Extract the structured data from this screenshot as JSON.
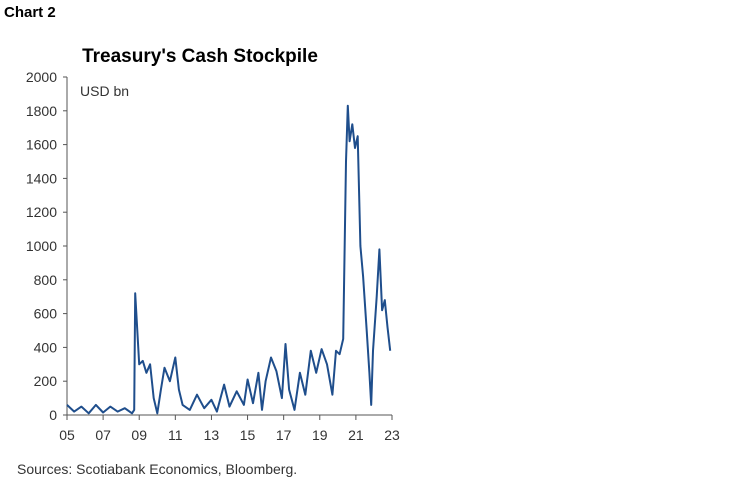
{
  "header": {
    "chart_label": "Chart 2"
  },
  "footer": {
    "source": "Sources: Scotiabank Economics, Bloomberg."
  },
  "chart_data": {
    "type": "line",
    "title": "Treasury's Cash Stockpile",
    "unit_label": "USD bn",
    "xlabel": "",
    "ylabel": "",
    "xlim": [
      2005,
      2023
    ],
    "ylim": [
      0,
      2000
    ],
    "x_ticks": [
      "05",
      "07",
      "09",
      "11",
      "13",
      "15",
      "17",
      "19",
      "21",
      "23"
    ],
    "y_ticks": [
      "0",
      "200",
      "400",
      "600",
      "800",
      "1000",
      "1200",
      "1400",
      "1600",
      "1800",
      "2000"
    ],
    "grid": false,
    "legend": "none",
    "line_color": "#1f4e8c",
    "series": [
      {
        "values": [
          [
            2005.0,
            60
          ],
          [
            2005.4,
            20
          ],
          [
            2005.8,
            50
          ],
          [
            2006.2,
            10
          ],
          [
            2006.6,
            60
          ],
          [
            2007.0,
            15
          ],
          [
            2007.4,
            50
          ],
          [
            2007.8,
            20
          ],
          [
            2008.2,
            40
          ],
          [
            2008.6,
            10
          ],
          [
            2008.72,
            30
          ],
          [
            2008.78,
            720
          ],
          [
            2008.88,
            520
          ],
          [
            2009.0,
            300
          ],
          [
            2009.2,
            320
          ],
          [
            2009.4,
            250
          ],
          [
            2009.6,
            300
          ],
          [
            2009.8,
            100
          ],
          [
            2010.0,
            10
          ],
          [
            2010.2,
            150
          ],
          [
            2010.4,
            280
          ],
          [
            2010.7,
            200
          ],
          [
            2011.0,
            340
          ],
          [
            2011.2,
            150
          ],
          [
            2011.4,
            60
          ],
          [
            2011.8,
            30
          ],
          [
            2012.2,
            120
          ],
          [
            2012.6,
            40
          ],
          [
            2013.0,
            90
          ],
          [
            2013.3,
            20
          ],
          [
            2013.7,
            180
          ],
          [
            2014.0,
            50
          ],
          [
            2014.4,
            140
          ],
          [
            2014.8,
            60
          ],
          [
            2015.0,
            210
          ],
          [
            2015.3,
            70
          ],
          [
            2015.6,
            250
          ],
          [
            2015.8,
            30
          ],
          [
            2016.0,
            200
          ],
          [
            2016.3,
            340
          ],
          [
            2016.6,
            260
          ],
          [
            2016.9,
            100
          ],
          [
            2017.1,
            420
          ],
          [
            2017.3,
            150
          ],
          [
            2017.6,
            30
          ],
          [
            2017.9,
            250
          ],
          [
            2018.2,
            120
          ],
          [
            2018.5,
            380
          ],
          [
            2018.8,
            250
          ],
          [
            2019.1,
            390
          ],
          [
            2019.4,
            300
          ],
          [
            2019.7,
            120
          ],
          [
            2019.9,
            380
          ],
          [
            2020.1,
            360
          ],
          [
            2020.3,
            450
          ],
          [
            2020.45,
            1500
          ],
          [
            2020.55,
            1830
          ],
          [
            2020.65,
            1620
          ],
          [
            2020.8,
            1720
          ],
          [
            2020.95,
            1580
          ],
          [
            2021.1,
            1650
          ],
          [
            2021.25,
            1000
          ],
          [
            2021.4,
            820
          ],
          [
            2021.6,
            500
          ],
          [
            2021.75,
            250
          ],
          [
            2021.85,
            60
          ],
          [
            2021.95,
            380
          ],
          [
            2022.15,
            700
          ],
          [
            2022.3,
            980
          ],
          [
            2022.45,
            620
          ],
          [
            2022.6,
            680
          ],
          [
            2022.75,
            520
          ],
          [
            2022.9,
            380
          ]
        ]
      }
    ]
  }
}
